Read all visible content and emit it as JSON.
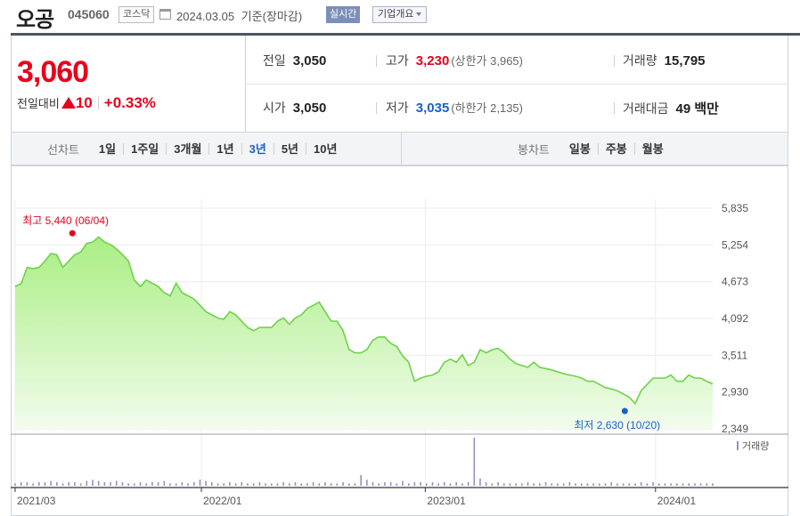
{
  "header": {
    "stock_name": "오공",
    "stock_code": "045060",
    "market": "코스닥",
    "date": "2024.03.05",
    "date_suffix": "기준(장마감)",
    "realtime_label": "실시간",
    "company_info_label": "기업개요"
  },
  "price": {
    "current": "3,060",
    "change_label": "전일대비",
    "change_direction": "up",
    "change_amount": "10",
    "change_percent": "+0.33%",
    "prev_close_label": "전일",
    "prev_close": "3,050",
    "open_label": "시가",
    "open": "3,050",
    "high_label": "고가",
    "high": "3,230",
    "upper_limit_text": "(상한가 3,965)",
    "low_label": "저가",
    "low": "3,035",
    "lower_limit_text": "(하한가 2,135)",
    "volume_label": "거래량",
    "volume": "15,795",
    "amount_label": "거래대금",
    "amount": "49 백만"
  },
  "periods": {
    "line_label": "선차트",
    "line_items": [
      "1일",
      "1주일",
      "3개월",
      "1년",
      "3년",
      "5년",
      "10년"
    ],
    "selected": "3년",
    "candle_label": "봉차트",
    "candle_items": [
      "일봉",
      "주봉",
      "월봉"
    ]
  },
  "colors": {
    "up": "#e8001c",
    "down": "#1a5fd0",
    "line": "#6fd14a",
    "fill_top": "#a9ee84",
    "fill_bottom": "#f2fcec",
    "volume_bar": "#9a8ec8"
  },
  "chart_data": {
    "type": "area",
    "y_ticks": [
      5835,
      5254,
      4673,
      4092,
      3511,
      2930,
      2349
    ],
    "ylim": [
      2349,
      5835
    ],
    "x_ticks": [
      "2021/03",
      "2022/01",
      "2023/01",
      "2024/01"
    ],
    "x_tick_pos": [
      0,
      0.267,
      0.588,
      0.918
    ],
    "high_annotation": "최고 5,440 (06/04)",
    "low_annotation": "최저 2,630 (10/20)",
    "high_point": {
      "t": 0.082,
      "y": 5440
    },
    "low_point": {
      "t": 0.874,
      "y": 2630
    },
    "volume_legend": "거래량",
    "series": [
      {
        "values": [
          4600,
          4640,
          4900,
          4880,
          4900,
          5000,
          5120,
          5100,
          4900,
          5000,
          5100,
          5140,
          5280,
          5300,
          5380,
          5300,
          5260,
          5190,
          5100,
          5000,
          4700,
          4600,
          4700,
          4650,
          4600,
          4500,
          4450,
          4650,
          4500,
          4450,
          4400,
          4300,
          4200,
          4150,
          4100,
          4080,
          4200,
          4150,
          4050,
          3950,
          3900,
          3950,
          3950,
          3950,
          4050,
          4100,
          4000,
          4100,
          4150,
          4250,
          4300,
          4350,
          4200,
          4050,
          4050,
          3900,
          3600,
          3550,
          3550,
          3600,
          3750,
          3800,
          3800,
          3700,
          3650,
          3500,
          3400,
          3100,
          3150,
          3180,
          3200,
          3250,
          3400,
          3450,
          3400,
          3520,
          3350,
          3400,
          3600,
          3550,
          3600,
          3620,
          3550,
          3450,
          3380,
          3350,
          3320,
          3400,
          3320,
          3300,
          3280,
          3250,
          3220,
          3200,
          3180,
          3150,
          3100,
          3100,
          3050,
          3000,
          2980,
          2950,
          2900,
          2850,
          2750,
          2950,
          3050,
          3150,
          3150,
          3150,
          3200,
          3100,
          3100,
          3200,
          3150,
          3150,
          3100,
          3060
        ]
      }
    ],
    "volume": [
      2,
      3,
      3,
      2,
      3,
      3,
      4,
      3,
      2,
      3,
      3,
      2,
      4,
      5,
      4,
      3,
      3,
      4,
      3,
      2,
      2,
      3,
      2,
      3,
      3,
      4,
      2,
      2,
      3,
      2,
      3,
      5,
      4,
      3,
      2,
      2,
      3,
      2,
      3,
      2,
      2,
      3,
      2,
      2,
      2,
      3,
      2,
      3,
      2,
      2,
      3,
      2,
      3,
      2,
      2,
      3,
      2,
      2,
      9,
      5,
      3,
      2,
      3,
      3,
      2,
      4,
      2,
      3,
      3,
      2,
      3,
      2,
      3,
      2,
      3,
      2,
      3,
      40,
      6,
      3,
      2,
      3,
      2,
      2,
      2,
      2,
      3,
      2,
      2,
      3,
      2,
      2,
      2,
      3,
      2,
      2,
      2,
      2,
      2,
      2,
      3,
      2,
      2,
      2,
      2,
      3,
      2,
      3,
      2,
      2,
      2,
      2,
      2,
      2,
      2,
      2,
      2,
      2
    ]
  }
}
